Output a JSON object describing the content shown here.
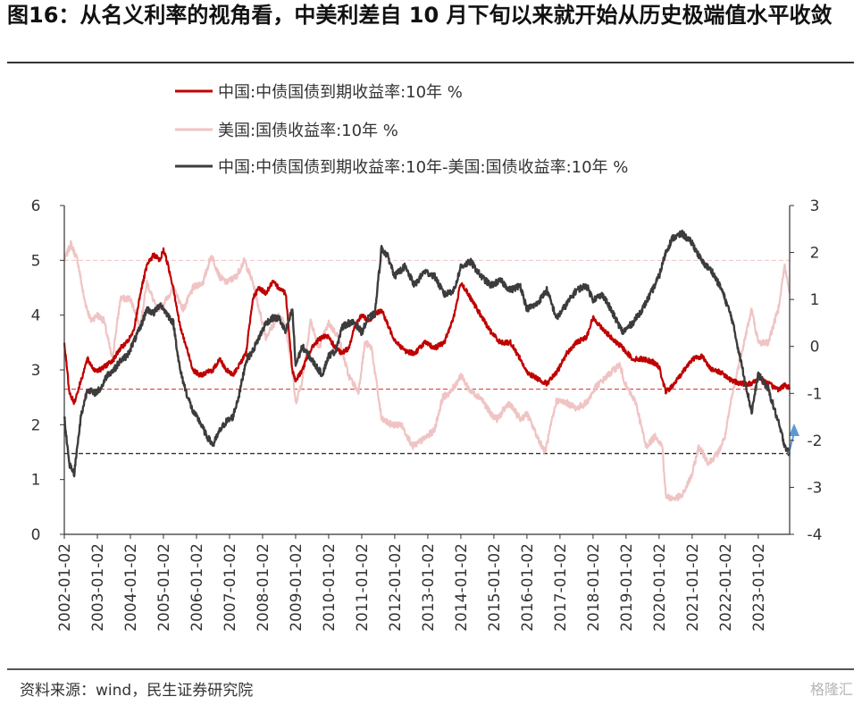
{
  "header": {
    "title": "图16：从名义利率的视角看，中美利差自 10 月下旬以来就开始从历史极端值水平收敛"
  },
  "footer": {
    "source": "资料来源：wind，民生证券研究院",
    "watermark": "格隆汇"
  },
  "colors": {
    "cn": "#c00000",
    "us": "#f0c4c4",
    "spread": "#3c3c3c",
    "cn_ref": "#d9534f",
    "spread_ref": "#333333",
    "arrow": "#5b9bd5"
  },
  "chart_data": {
    "type": "line",
    "title": "",
    "x_tick_labels": [
      "2002-01-02",
      "2003-01-02",
      "2004-01-02",
      "2005-01-02",
      "2006-01-02",
      "2007-01-02",
      "2008-01-02",
      "2009-01-02",
      "2010-01-02",
      "2011-01-02",
      "2012-01-02",
      "2013-01-02",
      "2014-01-02",
      "2015-01-02",
      "2016-01-02",
      "2017-01-02",
      "2018-01-02",
      "2019-01-02",
      "2020-01-02",
      "2021-01-02",
      "2022-01-02",
      "2023-01-02"
    ],
    "y_left": {
      "min": 0,
      "max": 6,
      "ticks": [
        0,
        1,
        2,
        3,
        4,
        5,
        6
      ]
    },
    "y_right": {
      "min": -4,
      "max": 3,
      "ticks": [
        "-4",
        "-3",
        "-2",
        "-1",
        "0",
        "1",
        "2",
        "3"
      ]
    },
    "reference_lines": [
      {
        "series": "中国:中债国债到期收益率:10年 %",
        "axis": "left",
        "value": 2.65,
        "style": "dashed"
      },
      {
        "series": "中国:中债国债到期收益率:10年-美国:国债收益率:10年 %",
        "axis": "right",
        "value": -2.28,
        "style": "dashed"
      },
      {
        "series": "美国:国债收益率:10年 %",
        "axis": "left",
        "value": 5.0,
        "style": "dashed"
      }
    ],
    "series": [
      {
        "name": "中国:中债国债到期收益率:10年 %",
        "axis": "left",
        "x": [
          2002.0,
          2002.15,
          2002.3,
          2002.5,
          2002.7,
          2002.9,
          2003.1,
          2003.3,
          2003.5,
          2003.7,
          2003.9,
          2004.1,
          2004.3,
          2004.5,
          2004.7,
          2004.9,
          2005.0,
          2005.1,
          2005.3,
          2005.5,
          2005.7,
          2005.9,
          2006.1,
          2006.3,
          2006.5,
          2006.7,
          2006.9,
          2007.1,
          2007.3,
          2007.5,
          2007.7,
          2007.9,
          2008.1,
          2008.3,
          2008.5,
          2008.7,
          2008.9,
          2009.0,
          2009.2,
          2009.4,
          2009.6,
          2009.8,
          2010.0,
          2010.2,
          2010.4,
          2010.6,
          2010.8,
          2011.0,
          2011.2,
          2011.4,
          2011.6,
          2011.8,
          2012.0,
          2012.3,
          2012.6,
          2012.9,
          2013.2,
          2013.5,
          2013.8,
          2014.0,
          2014.3,
          2014.6,
          2014.9,
          2015.2,
          2015.5,
          2015.8,
          2016.0,
          2016.3,
          2016.6,
          2016.9,
          2017.2,
          2017.5,
          2017.8,
          2018.0,
          2018.3,
          2018.6,
          2018.9,
          2019.2,
          2019.5,
          2019.8,
          2020.0,
          2020.2,
          2020.4,
          2020.7,
          2021.0,
          2021.3,
          2021.6,
          2021.9,
          2022.2,
          2022.5,
          2022.8,
          2023.0,
          2023.3,
          2023.6,
          2023.8,
          2023.95
        ],
        "y": [
          3.5,
          2.6,
          2.4,
          2.8,
          3.2,
          3.0,
          3.0,
          3.1,
          3.2,
          3.4,
          3.5,
          3.7,
          4.4,
          4.9,
          5.1,
          5.0,
          5.2,
          5.0,
          4.5,
          3.8,
          3.4,
          3.0,
          2.9,
          2.95,
          3.0,
          3.2,
          3.0,
          2.9,
          3.1,
          3.3,
          4.3,
          4.5,
          4.4,
          4.6,
          4.5,
          4.4,
          3.0,
          2.8,
          3.0,
          3.3,
          3.5,
          3.6,
          3.6,
          3.4,
          3.3,
          3.4,
          3.8,
          4.0,
          3.9,
          4.0,
          4.1,
          3.8,
          3.55,
          3.35,
          3.3,
          3.5,
          3.4,
          3.5,
          4.0,
          4.6,
          4.3,
          4.0,
          3.7,
          3.5,
          3.5,
          3.2,
          2.95,
          2.85,
          2.75,
          2.95,
          3.3,
          3.5,
          3.6,
          3.95,
          3.75,
          3.55,
          3.4,
          3.2,
          3.2,
          3.15,
          3.05,
          2.6,
          2.7,
          2.95,
          3.2,
          3.25,
          3.0,
          2.95,
          2.8,
          2.75,
          2.75,
          2.85,
          2.75,
          2.65,
          2.72,
          2.68
        ]
      },
      {
        "name": "美国:国债收益率:10年 %",
        "axis": "left",
        "x": [
          2002.0,
          2002.2,
          2002.4,
          2002.6,
          2002.8,
          2003.0,
          2003.2,
          2003.45,
          2003.7,
          2004.0,
          2004.3,
          2004.5,
          2004.8,
          2005.0,
          2005.3,
          2005.6,
          2005.9,
          2006.2,
          2006.45,
          2006.7,
          2006.9,
          2007.2,
          2007.45,
          2007.7,
          2007.9,
          2008.1,
          2008.3,
          2008.5,
          2008.7,
          2008.9,
          2009.0,
          2009.2,
          2009.45,
          2009.7,
          2010.0,
          2010.3,
          2010.6,
          2010.9,
          2011.1,
          2011.3,
          2011.6,
          2011.9,
          2012.2,
          2012.55,
          2012.9,
          2013.2,
          2013.45,
          2013.7,
          2014.0,
          2014.3,
          2014.6,
          2014.9,
          2015.1,
          2015.45,
          2015.8,
          2016.0,
          2016.3,
          2016.55,
          2016.9,
          2017.2,
          2017.5,
          2017.8,
          2018.1,
          2018.45,
          2018.8,
          2019.0,
          2019.3,
          2019.6,
          2019.9,
          2020.1,
          2020.2,
          2020.4,
          2020.7,
          2021.0,
          2021.2,
          2021.5,
          2021.8,
          2022.0,
          2022.2,
          2022.45,
          2022.8,
          2023.0,
          2023.3,
          2023.6,
          2023.8,
          2023.95
        ],
        "y": [
          5.0,
          5.3,
          5.0,
          4.3,
          3.9,
          4.0,
          3.9,
          3.2,
          4.3,
          4.3,
          3.8,
          4.6,
          4.1,
          4.2,
          4.5,
          4.1,
          4.5,
          4.6,
          5.1,
          4.7,
          4.6,
          4.7,
          5.0,
          4.6,
          4.1,
          3.6,
          3.8,
          4.0,
          3.8,
          3.0,
          2.4,
          2.8,
          3.9,
          3.4,
          3.85,
          3.6,
          2.9,
          2.6,
          3.5,
          3.4,
          2.1,
          2.0,
          2.0,
          1.6,
          1.75,
          1.9,
          2.5,
          2.6,
          2.9,
          2.6,
          2.5,
          2.2,
          2.1,
          2.4,
          2.1,
          2.2,
          1.8,
          1.5,
          2.45,
          2.4,
          2.3,
          2.4,
          2.7,
          2.9,
          3.1,
          2.7,
          2.4,
          1.6,
          1.8,
          1.6,
          0.7,
          0.65,
          0.7,
          1.1,
          1.6,
          1.3,
          1.5,
          1.8,
          2.5,
          3.2,
          4.1,
          3.5,
          3.5,
          4.1,
          4.9,
          4.4
        ]
      },
      {
        "name": "中国:中债国债到期收益率:10年-美国:国债收益率:10年 %",
        "axis": "right",
        "x": [
          2002.0,
          2002.15,
          2002.3,
          2002.5,
          2002.7,
          2002.9,
          2003.1,
          2003.3,
          2003.5,
          2003.7,
          2003.9,
          2004.1,
          2004.3,
          2004.5,
          2004.7,
          2004.9,
          2005.1,
          2005.3,
          2005.5,
          2005.7,
          2005.9,
          2006.1,
          2006.3,
          2006.5,
          2006.7,
          2006.9,
          2007.1,
          2007.3,
          2007.5,
          2007.7,
          2007.9,
          2008.1,
          2008.3,
          2008.5,
          2008.7,
          2008.9,
          2009.0,
          2009.2,
          2009.4,
          2009.6,
          2009.8,
          2010.0,
          2010.2,
          2010.4,
          2010.6,
          2010.8,
          2011.0,
          2011.2,
          2011.4,
          2011.6,
          2011.8,
          2012.0,
          2012.3,
          2012.6,
          2012.9,
          2013.2,
          2013.5,
          2013.8,
          2014.0,
          2014.3,
          2014.6,
          2014.9,
          2015.2,
          2015.5,
          2015.8,
          2016.0,
          2016.3,
          2016.6,
          2016.9,
          2017.2,
          2017.5,
          2017.8,
          2018.0,
          2018.3,
          2018.6,
          2018.9,
          2019.2,
          2019.5,
          2019.8,
          2020.0,
          2020.2,
          2020.4,
          2020.7,
          2021.0,
          2021.3,
          2021.6,
          2021.9,
          2022.2,
          2022.5,
          2022.8,
          2023.0,
          2023.3,
          2023.6,
          2023.8,
          2023.95
        ],
        "y": [
          -1.5,
          -2.5,
          -2.7,
          -1.5,
          -0.9,
          -1.0,
          -0.9,
          -0.6,
          -0.5,
          -0.3,
          -0.2,
          0.1,
          0.4,
          0.8,
          0.7,
          0.9,
          0.7,
          0.5,
          -0.5,
          -1.0,
          -1.4,
          -1.6,
          -1.9,
          -2.1,
          -1.8,
          -1.6,
          -1.5,
          -1.0,
          -0.3,
          -0.1,
          0.2,
          0.5,
          0.6,
          0.6,
          0.3,
          0.8,
          -0.4,
          0.0,
          -0.2,
          -0.4,
          -0.6,
          -0.2,
          -0.1,
          0.4,
          0.5,
          0.5,
          0.3,
          0.6,
          0.7,
          2.1,
          1.9,
          1.5,
          1.7,
          1.3,
          1.6,
          1.5,
          1.1,
          1.2,
          1.7,
          1.8,
          1.5,
          1.3,
          1.4,
          1.2,
          1.3,
          0.8,
          0.9,
          1.2,
          0.6,
          0.9,
          1.2,
          1.3,
          1.0,
          1.1,
          0.7,
          0.3,
          0.5,
          0.8,
          1.2,
          1.5,
          2.0,
          2.3,
          2.4,
          2.2,
          1.8,
          1.6,
          1.2,
          0.6,
          -0.4,
          -1.4,
          -0.6,
          -0.9,
          -1.6,
          -2.1,
          -2.3
        ]
      }
    ]
  }
}
